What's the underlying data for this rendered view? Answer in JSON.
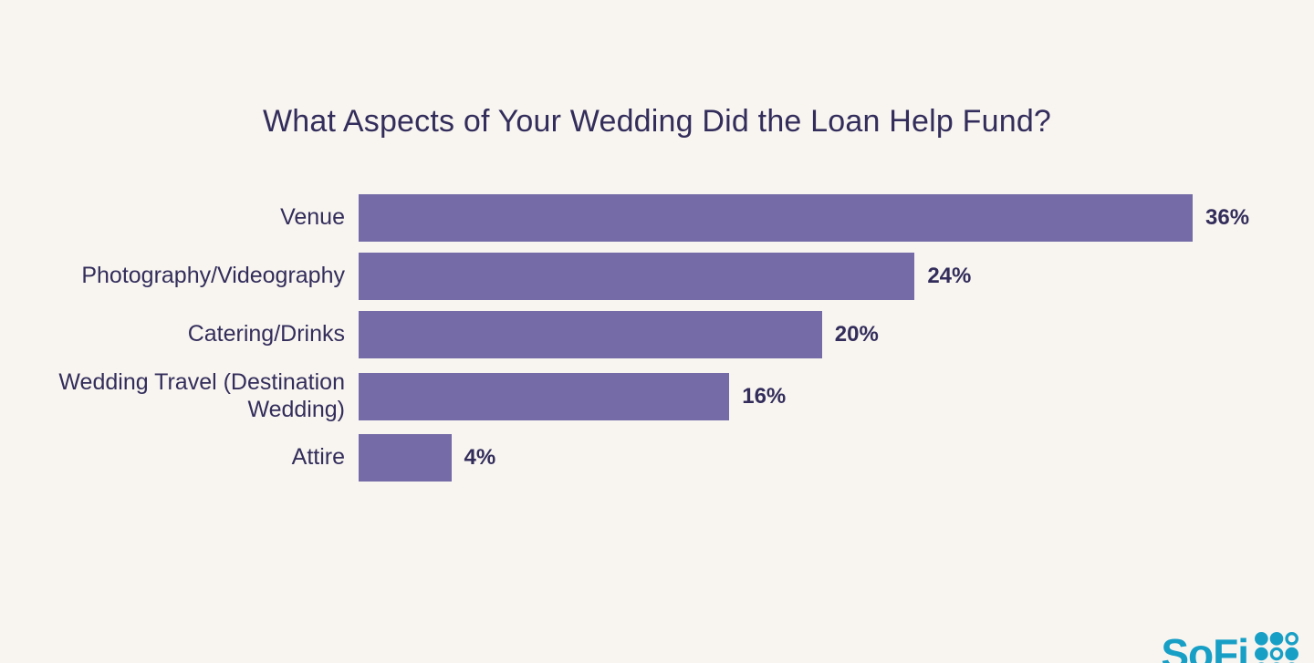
{
  "title": "What Aspects of Your Wedding Did the Loan Help Fund?",
  "chart_data": {
    "type": "bar",
    "orientation": "horizontal",
    "title": "What Aspects of Your Wedding Did the Loan Help Fund?",
    "categories": [
      "Venue",
      "Photography/Videography",
      "Catering/Drinks",
      "Wedding Travel (Destination Wedding)",
      "Attire"
    ],
    "values": [
      36,
      24,
      20,
      16,
      4
    ],
    "value_labels": [
      "36%",
      "24%",
      "20%",
      "16%",
      "4%"
    ],
    "xlabel": "",
    "ylabel": "",
    "xlim": [
      0,
      38
    ],
    "grid": false,
    "legend": "none",
    "bar_color": "#756ca7",
    "text_color": "#332d5b",
    "background_color": "#f8f5f0"
  },
  "branding": {
    "logo_text": "SoFi",
    "logo_color": "#189fc6",
    "logo_icon": "sofi-dot-grid-icon"
  }
}
